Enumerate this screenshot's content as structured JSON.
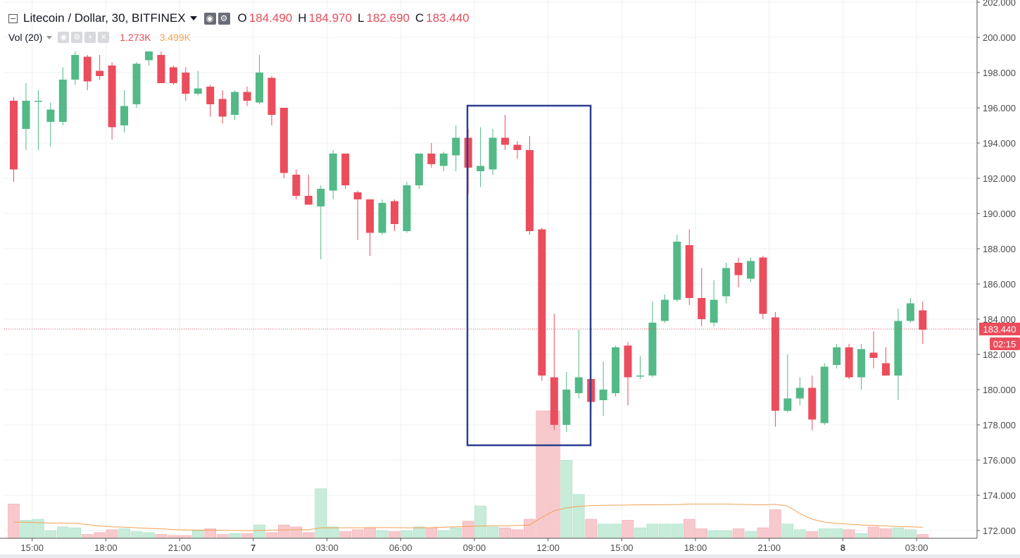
{
  "header": {
    "symbol": "Litecoin / Dollar, 30, BITFINEX",
    "ohlc": [
      {
        "key": "O",
        "value": "184.490"
      },
      {
        "key": "H",
        "value": "184.970"
      },
      {
        "key": "L",
        "value": "182.690"
      },
      {
        "key": "C",
        "value": "183.440"
      }
    ]
  },
  "volume_legend": {
    "label": "Vol (20)",
    "value1": "1.273K",
    "value2": "3.499K"
  },
  "colors": {
    "up": "#53b987",
    "down": "#eb4d5c",
    "volume_ma": "#f5a052",
    "box": "#2a3f8f"
  },
  "last_price": {
    "label": "183.440",
    "value": 183.44,
    "countdown": "02:15"
  },
  "chart_data": {
    "type": "candlestick",
    "title": "Litecoin / Dollar, 30, BITFINEX",
    "ylim": [
      171.6,
      202.0
    ],
    "y_ticks": [
      "172.000",
      "174.000",
      "176.000",
      "178.000",
      "180.000",
      "182.000",
      "184.000",
      "186.000",
      "188.000",
      "190.000",
      "192.000",
      "194.000",
      "196.000",
      "198.000",
      "200.000",
      "202.000"
    ],
    "x_ticks": [
      {
        "label": "15:00",
        "index": 1.5
      },
      {
        "label": "18:00",
        "index": 7.5
      },
      {
        "label": "21:00",
        "index": 13.5
      },
      {
        "label": "7",
        "index": 19.5
      },
      {
        "label": "03:00",
        "index": 25.5
      },
      {
        "label": "06:00",
        "index": 31.5
      },
      {
        "label": "09:00",
        "index": 37.5
      },
      {
        "label": "12:00",
        "index": 43.5
      },
      {
        "label": "15:00",
        "index": 49.5
      },
      {
        "label": "18:00",
        "index": 55.5
      },
      {
        "label": "21:00",
        "index": 61.5
      },
      {
        "label": "8",
        "index": 67.5
      },
      {
        "label": "03:00",
        "index": 73.5
      }
    ],
    "grid": true,
    "candles": [
      [
        196.4,
        196.6,
        191.8,
        192.5
      ],
      [
        194.8,
        197.4,
        193.6,
        196.4
      ],
      [
        196.4,
        197.0,
        193.6,
        196.4
      ],
      [
        195.2,
        196.3,
        193.8,
        195.9
      ],
      [
        195.2,
        198.3,
        195.0,
        197.6
      ],
      [
        197.6,
        199.2,
        197.3,
        199.0
      ],
      [
        198.9,
        199.0,
        197.0,
        197.5
      ],
      [
        198.1,
        199.0,
        197.6,
        197.8
      ],
      [
        198.4,
        198.6,
        194.2,
        194.9
      ],
      [
        195.0,
        197.0,
        194.6,
        196.1
      ],
      [
        196.2,
        198.6,
        196.0,
        198.5
      ],
      [
        198.7,
        199.2,
        198.4,
        199.2
      ],
      [
        199.0,
        199.2,
        197.4,
        197.4
      ],
      [
        198.3,
        198.4,
        197.3,
        197.4
      ],
      [
        198.0,
        198.3,
        196.4,
        196.8
      ],
      [
        196.8,
        198.1,
        196.7,
        197.1
      ],
      [
        197.2,
        197.3,
        195.5,
        196.2
      ],
      [
        196.5,
        197.0,
        195.1,
        195.5
      ],
      [
        195.6,
        197.0,
        195.3,
        196.9
      ],
      [
        196.9,
        197.2,
        196.1,
        196.4
      ],
      [
        196.3,
        199.0,
        196.2,
        198.0
      ],
      [
        197.7,
        197.8,
        195.0,
        195.6
      ],
      [
        196.0,
        196.0,
        192.0,
        192.3
      ],
      [
        192.2,
        192.5,
        190.8,
        191.0
      ],
      [
        191.0,
        192.2,
        190.5,
        190.5
      ],
      [
        190.4,
        191.6,
        187.4,
        191.4
      ],
      [
        191.3,
        193.6,
        190.8,
        193.4
      ],
      [
        193.4,
        193.4,
        191.4,
        191.6
      ],
      [
        191.2,
        191.3,
        188.5,
        190.8
      ],
      [
        190.8,
        190.8,
        187.6,
        188.9
      ],
      [
        188.9,
        190.8,
        188.8,
        190.6
      ],
      [
        190.7,
        190.8,
        189.0,
        189.4
      ],
      [
        189.0,
        191.8,
        188.9,
        191.6
      ],
      [
        191.6,
        193.4,
        191.4,
        193.4
      ],
      [
        193.4,
        194.0,
        192.6,
        192.8
      ],
      [
        192.7,
        193.5,
        192.4,
        193.4
      ],
      [
        193.3,
        195.0,
        192.4,
        194.3
      ],
      [
        194.3,
        194.8,
        191.1,
        192.6
      ],
      [
        192.4,
        194.9,
        191.5,
        192.7
      ],
      [
        192.5,
        194.8,
        192.2,
        194.3
      ],
      [
        194.3,
        195.6,
        193.6,
        193.9
      ],
      [
        193.9,
        194.1,
        193.1,
        193.6
      ],
      [
        193.6,
        194.4,
        188.8,
        189.0
      ],
      [
        189.1,
        189.2,
        180.5,
        180.8
      ],
      [
        180.7,
        184.3,
        177.7,
        178.0
      ],
      [
        178.0,
        181.0,
        177.6,
        180.0
      ],
      [
        179.8,
        183.4,
        179.5,
        180.7
      ],
      [
        180.6,
        182.6,
        178.7,
        179.3
      ],
      [
        179.4,
        181.6,
        178.5,
        180.0
      ],
      [
        179.8,
        182.5,
        179.6,
        182.4
      ],
      [
        182.5,
        182.7,
        179.1,
        180.7
      ],
      [
        180.8,
        181.9,
        180.6,
        180.8
      ],
      [
        180.8,
        185.0,
        180.7,
        183.8
      ],
      [
        183.9,
        185.4,
        183.8,
        185.1
      ],
      [
        185.1,
        188.8,
        185.0,
        188.4
      ],
      [
        188.2,
        189.1,
        184.8,
        185.2
      ],
      [
        185.2,
        186.9,
        183.6,
        184.0
      ],
      [
        183.8,
        186.2,
        183.6,
        185.1
      ],
      [
        185.3,
        187.2,
        184.9,
        186.9
      ],
      [
        187.2,
        187.5,
        185.8,
        186.5
      ],
      [
        186.3,
        187.5,
        186.1,
        187.3
      ],
      [
        187.5,
        187.6,
        184.0,
        184.3
      ],
      [
        184.1,
        184.4,
        177.9,
        178.8
      ],
      [
        178.8,
        182.0,
        178.7,
        179.5
      ],
      [
        179.5,
        180.7,
        179.1,
        180.1
      ],
      [
        180.1,
        180.8,
        177.7,
        178.3
      ],
      [
        178.1,
        181.5,
        178.0,
        181.3
      ],
      [
        181.4,
        182.6,
        181.2,
        182.4
      ],
      [
        182.4,
        182.6,
        180.6,
        180.7
      ],
      [
        180.7,
        182.6,
        180.0,
        182.3
      ],
      [
        182.1,
        183.3,
        181.2,
        181.8
      ],
      [
        181.5,
        182.4,
        180.8,
        180.8
      ],
      [
        180.8,
        184.6,
        179.4,
        183.9
      ],
      [
        183.9,
        185.2,
        183.8,
        184.9
      ],
      [
        184.5,
        185.0,
        182.6,
        183.4
      ]
    ],
    "volume_scale_max_visual": 12,
    "volume": [
      1.8,
      0.95,
      1.0,
      0.4,
      0.6,
      0.55,
      0.2,
      0.3,
      0.45,
      0.5,
      0.35,
      0.3,
      0.2,
      0.15,
      0.15,
      0.4,
      0.5,
      0.2,
      0.25,
      0.25,
      0.7,
      0.3,
      0.7,
      0.6,
      0.3,
      2.6,
      0.6,
      0.35,
      0.45,
      0.55,
      0.4,
      0.35,
      0.4,
      0.6,
      0.55,
      0.4,
      0.55,
      0.9,
      1.7,
      0.6,
      0.55,
      0.45,
      1.0,
      6.7,
      6.7,
      4.1,
      2.3,
      1.0,
      0.75,
      0.75,
      0.95,
      0.55,
      0.75,
      0.75,
      0.75,
      1.0,
      0.5,
      0.4,
      0.4,
      0.5,
      0.35,
      0.55,
      1.5,
      0.75,
      0.45,
      0.35,
      0.5,
      0.5,
      0.45,
      0.25,
      0.6,
      0.5,
      0.55,
      0.45,
      0.2
    ],
    "volume_ma": [
      0.85,
      0.84,
      0.82,
      0.8,
      0.8,
      0.78,
      0.72,
      0.65,
      0.6,
      0.58,
      0.55,
      0.52,
      0.5,
      0.46,
      0.44,
      0.43,
      0.43,
      0.42,
      0.41,
      0.4,
      0.42,
      0.43,
      0.44,
      0.45,
      0.45,
      0.55,
      0.55,
      0.55,
      0.55,
      0.56,
      0.56,
      0.56,
      0.55,
      0.55,
      0.56,
      0.58,
      0.6,
      0.62,
      0.65,
      0.66,
      0.66,
      0.67,
      0.7,
      1.1,
      1.45,
      1.6,
      1.68,
      1.72,
      1.73,
      1.74,
      1.75,
      1.76,
      1.76,
      1.77,
      1.77,
      1.8,
      1.8,
      1.8,
      1.8,
      1.78,
      1.77,
      1.76,
      1.78,
      1.7,
      1.3,
      1.0,
      0.85,
      0.78,
      0.74,
      0.7,
      0.68,
      0.65,
      0.62,
      0.6,
      0.58
    ]
  }
}
